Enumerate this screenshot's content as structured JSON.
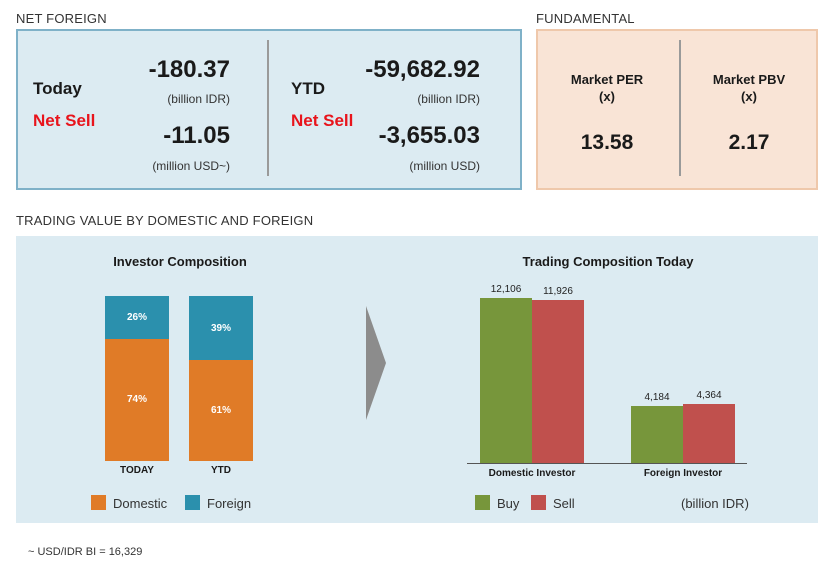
{
  "net_foreign": {
    "section_title": "NET FOREIGN",
    "today_label": "Today",
    "net_sell_label_left": "Net Sell",
    "today_idr_value": "-180.37",
    "today_idr_unit": "(billion IDR)",
    "today_usd_value": "-11.05",
    "today_usd_unit": "(million USD~)",
    "ytd_label": "YTD",
    "net_sell_label_right": "Net Sell",
    "ytd_idr_value": "-59,682.92",
    "ytd_idr_unit": "(billion IDR)",
    "ytd_usd_value": "-3,655.03",
    "ytd_usd_unit": "(million USD)"
  },
  "fundamental": {
    "section_title": "FUNDAMENTAL",
    "per_label": "Market PER",
    "per_unit": "(x)",
    "per_value": "13.58",
    "pbv_label": "Market PBV",
    "pbv_unit": "(x)",
    "pbv_value": "2.17"
  },
  "trading_section_title": "TRADING VALUE BY DOMESTIC AND FOREIGN",
  "footnote": "~ USD/IDR BI = 16,329",
  "colors": {
    "domestic": "#e07b27",
    "foreign": "#2b90ad",
    "buy": "#77963b",
    "sell": "#c0504d",
    "panel_bg": "#dcebf2",
    "fundamental_bg": "#f9e4d6",
    "net_sell_red": "#e8141c"
  },
  "chart_data": [
    {
      "type": "bar",
      "stacked": true,
      "title": "Investor Composition",
      "categories": [
        "TODAY",
        "YTD"
      ],
      "series": [
        {
          "name": "Domestic",
          "values": [
            74,
            61
          ],
          "labels": [
            "74%",
            "61%"
          ]
        },
        {
          "name": "Foreign",
          "values": [
            26,
            39
          ],
          "labels": [
            "26%",
            "39%"
          ]
        }
      ],
      "ylim": [
        0,
        100
      ],
      "legend": "bottom",
      "grid": false
    },
    {
      "type": "bar",
      "title": "Trading Composition Today",
      "categories": [
        "Domestic Investor",
        "Foreign Investor"
      ],
      "series": [
        {
          "name": "Buy",
          "values": [
            12106,
            4184
          ],
          "labels": [
            "12,106",
            "4,184"
          ]
        },
        {
          "name": "Sell",
          "values": [
            11926,
            4364
          ],
          "labels": [
            "11,926",
            "4,364"
          ]
        }
      ],
      "unit_note": "(billion IDR)",
      "legend": "bottom",
      "grid": false
    }
  ]
}
